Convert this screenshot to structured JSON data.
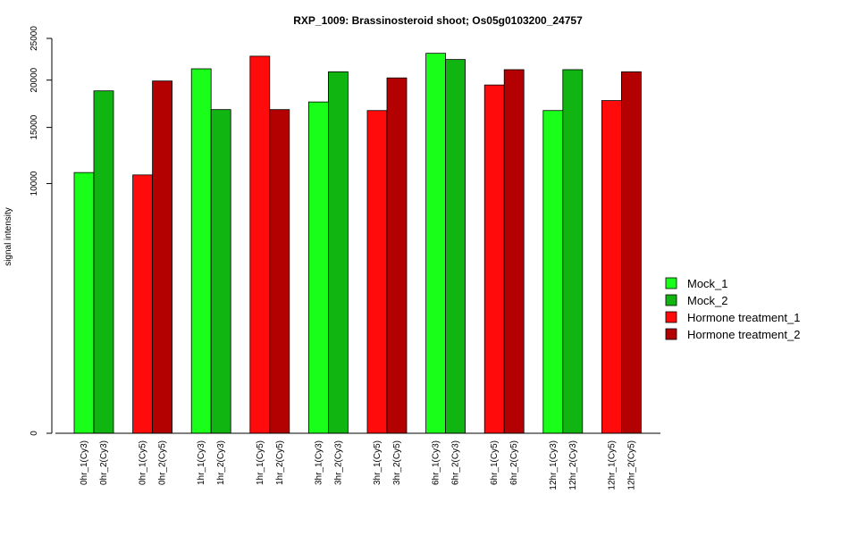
{
  "chart_data": {
    "type": "bar",
    "title": "RXP_1009: Brassinosteroid shoot; Os05g0103200_24757",
    "ylabel": "signal intensity",
    "xlabel": "",
    "y_scale": "sqrt",
    "ylim": [
      0,
      25000
    ],
    "y_ticks": [
      0,
      10000,
      15000,
      20000,
      25000
    ],
    "y_tick_labels": [
      "0",
      "10000",
      "15000",
      "20000",
      "25000"
    ],
    "legend": [
      {
        "name": "Mock_1",
        "color": "#1AFF1A"
      },
      {
        "name": "Mock_2",
        "color": "#11B511"
      },
      {
        "name": "Hormone treatment_1",
        "color": "#FF0B0B"
      },
      {
        "name": "Hormone treatment_2",
        "color": "#B30000"
      }
    ],
    "legend_position": "right",
    "groups": [
      {
        "bars": [
          {
            "label": "0hr_1(Cy3)",
            "value": 10900,
            "color": "#1AFF1A"
          },
          {
            "label": "0hr_2(Cy3)",
            "value": 18800,
            "color": "#11B511"
          }
        ]
      },
      {
        "bars": [
          {
            "label": "0hr_1(Cy5)",
            "value": 10700,
            "color": "#FF0B0B"
          },
          {
            "label": "0hr_2(Cy5)",
            "value": 19900,
            "color": "#B30000"
          }
        ]
      },
      {
        "bars": [
          {
            "label": "1hr_1(Cy3)",
            "value": 21300,
            "color": "#1AFF1A"
          },
          {
            "label": "1hr_2(Cy3)",
            "value": 16800,
            "color": "#11B511"
          }
        ]
      },
      {
        "bars": [
          {
            "label": "1hr_1(Cy5)",
            "value": 22800,
            "color": "#FF0B0B"
          },
          {
            "label": "1hr_2(Cy5)",
            "value": 16800,
            "color": "#B30000"
          }
        ]
      },
      {
        "bars": [
          {
            "label": "3hr_1(Cy3)",
            "value": 17600,
            "color": "#1AFF1A"
          },
          {
            "label": "3hr_2(Cy3)",
            "value": 20950,
            "color": "#11B511"
          }
        ]
      },
      {
        "bars": [
          {
            "label": "3hr_1(Cy5)",
            "value": 16700,
            "color": "#FF0B0B"
          },
          {
            "label": "3hr_2(Cy5)",
            "value": 20250,
            "color": "#B30000"
          }
        ]
      },
      {
        "bars": [
          {
            "label": "6hr_1(Cy3)",
            "value": 23150,
            "color": "#1AFF1A"
          },
          {
            "label": "6hr_2(Cy3)",
            "value": 22400,
            "color": "#11B511"
          }
        ]
      },
      {
        "bars": [
          {
            "label": "6hr_1(Cy5)",
            "value": 19450,
            "color": "#FF0B0B"
          },
          {
            "label": "6hr_2(Cy5)",
            "value": 21200,
            "color": "#B30000"
          }
        ]
      },
      {
        "bars": [
          {
            "label": "12hr_1(Cy3)",
            "value": 16700,
            "color": "#1AFF1A"
          },
          {
            "label": "12hr_2(Cy3)",
            "value": 21200,
            "color": "#11B511"
          }
        ]
      },
      {
        "bars": [
          {
            "label": "12hr_1(Cy5)",
            "value": 17750,
            "color": "#FF0B0B"
          },
          {
            "label": "12hr_2(Cy5)",
            "value": 20950,
            "color": "#B30000"
          }
        ]
      }
    ]
  }
}
